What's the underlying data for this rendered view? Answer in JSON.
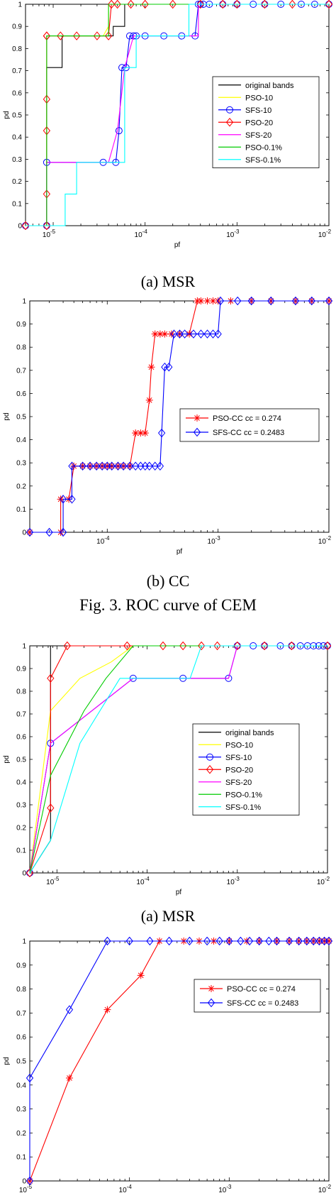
{
  "captions": {
    "chart1": "(a) MSR",
    "chart2": "(b) CC",
    "figure": "Fig. 3. ROC curve of CEM",
    "chart3": "(a) MSR"
  },
  "chart_data": [
    {
      "type": "line",
      "xlabel": "pf",
      "ylabel": "pd",
      "xscale": "log",
      "xlim": [
        5e-06,
        0.01
      ],
      "ylim": [
        0,
        1
      ],
      "xticks": [
        "10-5",
        "10-4",
        "10-3",
        "10-2"
      ],
      "yticks": [
        "0",
        "0.1",
        "0.2",
        "0.3",
        "0.4",
        "0.5",
        "0.6",
        "0.7",
        "0.8",
        "0.9",
        "1"
      ],
      "legend_position": "right-middle",
      "series": [
        {
          "name": "original bands",
          "color": "#000000",
          "marker": "none",
          "x": [
            5e-06,
            8.5e-06,
            8.5e-06,
            1.25e-05,
            1.25e-05,
            4.5e-05,
            4.5e-05,
            6e-05,
            6e-05,
            0.01
          ],
          "y": [
            0,
            0,
            0.714,
            0.714,
            0.857,
            0.857,
            0.9,
            0.9,
            1,
            1
          ]
        },
        {
          "name": "PSO-10",
          "color": "#ffff00",
          "marker": "none",
          "x": [
            5e-06,
            8.5e-06,
            8.5e-06,
            3e-05,
            3.5e-05,
            4e-05,
            4e-05,
            0.01
          ],
          "y": [
            0,
            0,
            0.857,
            0.857,
            0.857,
            0.9,
            1,
            1
          ]
        },
        {
          "name": "SFS-10",
          "color": "#0000ff",
          "marker": "circle",
          "x": [
            5e-06,
            8.5e-06,
            8.5e-06,
            3.5e-05,
            4.8e-05,
            5.2e-05,
            5.6e-05,
            6.2e-05,
            6.8e-05,
            7.5e-05,
            8e-05,
            0.0001,
            0.00016,
            0.00025,
            0.00035,
            0.00038,
            0.0004,
            0.00043,
            0.0005,
            0.0007,
            0.001,
            0.0015,
            0.002,
            0.003,
            0.005,
            0.007,
            0.01
          ],
          "y": [
            0,
            0,
            0.286,
            0.286,
            0.286,
            0.429,
            0.714,
            0.714,
            0.857,
            0.857,
            0.857,
            0.857,
            0.857,
            0.857,
            0.857,
            1,
            1,
            1,
            1,
            1,
            1,
            1,
            1,
            1,
            1,
            1,
            1
          ]
        },
        {
          "name": "PSO-20",
          "color": "#ff0000",
          "marker": "diamond",
          "x": [
            5e-06,
            8.5e-06,
            8.5e-06,
            8.5e-06,
            8.5e-06,
            8.5e-06,
            8.5e-06,
            1.2e-05,
            1.8e-05,
            3e-05,
            4e-05,
            4.3e-05,
            5e-05,
            7e-05,
            0.0001,
            0.0002,
            0.0004,
            0.0007,
            0.001,
            0.002,
            0.004,
            0.01
          ],
          "y": [
            0,
            0,
            0.143,
            0.429,
            0.571,
            0.857,
            0.857,
            0.857,
            0.857,
            0.857,
            0.857,
            1,
            1,
            1,
            1,
            1,
            1,
            1,
            1,
            1,
            1,
            1
          ]
        },
        {
          "name": "SFS-20",
          "color": "#ff00ff",
          "marker": "none",
          "x": [
            5e-06,
            8.5e-06,
            8.5e-06,
            4e-05,
            5e-05,
            6e-05,
            7.5e-05,
            0.0003,
            0.00038,
            0.00038,
            0.01
          ],
          "y": [
            0,
            0,
            0.286,
            0.286,
            0.429,
            0.714,
            0.857,
            0.857,
            0.857,
            1,
            1
          ]
        },
        {
          "name": "PSO-0.1%",
          "color": "#00cc00",
          "marker": "none",
          "x": [
            5e-06,
            8.5e-06,
            8.5e-06,
            4e-05,
            4e-05,
            0.01
          ],
          "y": [
            0,
            0,
            0.857,
            0.857,
            1,
            1
          ]
        },
        {
          "name": "SFS-0.1%",
          "color": "#00ffff",
          "marker": "none",
          "x": [
            5e-06,
            1.35e-05,
            1.35e-05,
            1.8e-05,
            1.8e-05,
            6e-05,
            6e-05,
            8e-05,
            8e-05,
            0.0003,
            0.0003,
            0.01
          ],
          "y": [
            0,
            0,
            0.143,
            0.143,
            0.286,
            0.286,
            0.714,
            0.714,
            0.857,
            0.857,
            1,
            1
          ]
        }
      ]
    },
    {
      "type": "line",
      "xlabel": "pf",
      "ylabel": "pd",
      "xscale": "log",
      "xlim": [
        2e-05,
        0.01
      ],
      "ylim": [
        0,
        1
      ],
      "xticks": [
        "10-4",
        "10-3",
        "10-2"
      ],
      "yticks": [
        "0",
        "0.1",
        "0.2",
        "0.3",
        "0.4",
        "0.5",
        "0.6",
        "0.7",
        "0.8",
        "0.9",
        "1"
      ],
      "legend_position": "right-middle",
      "series": [
        {
          "name": "PSO-CC cc = 0.274",
          "color": "#ff0000",
          "marker": "star",
          "x": [
            2e-05,
            3.8e-05,
            3.8e-05,
            4.5e-05,
            5e-05,
            6e-05,
            7e-05,
            8e-05,
            9e-05,
            0.0001,
            0.00011,
            0.000125,
            0.00014,
            0.00016,
            0.00018,
            0.0002,
            0.00022,
            0.00024,
            0.00025,
            0.00027,
            0.0003,
            0.00033,
            0.00038,
            0.00045,
            0.00055,
            0.00065,
            0.0007,
            0.0008,
            0.0009,
            0.001,
            0.0013,
            0.002,
            0.003,
            0.005,
            0.007,
            0.01
          ],
          "y": [
            0,
            0,
            0.143,
            0.143,
            0.286,
            0.286,
            0.286,
            0.286,
            0.286,
            0.286,
            0.286,
            0.286,
            0.286,
            0.286,
            0.429,
            0.429,
            0.429,
            0.571,
            0.714,
            0.857,
            0.857,
            0.857,
            0.857,
            0.857,
            0.857,
            1,
            1,
            1,
            1,
            1,
            1,
            1,
            1,
            1,
            1,
            1
          ]
        },
        {
          "name": "SFS-CC cc = 0.2483",
          "color": "#0000ff",
          "marker": "diamond",
          "x": [
            2e-05,
            3e-05,
            4e-05,
            4e-05,
            4.8e-05,
            4.8e-05,
            6e-05,
            7e-05,
            8e-05,
            9e-05,
            0.0001,
            0.00011,
            0.000125,
            0.00014,
            0.00016,
            0.00018,
            0.0002,
            0.00022,
            0.00024,
            0.00027,
            0.0003,
            0.00031,
            0.00033,
            0.00036,
            0.0004,
            0.00045,
            0.0005,
            0.0006,
            0.0007,
            0.0008,
            0.0009,
            0.001,
            0.00105,
            0.0015,
            0.002,
            0.003,
            0.005,
            0.007,
            0.01
          ],
          "y": [
            0,
            0,
            0,
            0.143,
            0.143,
            0.286,
            0.286,
            0.286,
            0.286,
            0.286,
            0.286,
            0.286,
            0.286,
            0.286,
            0.286,
            0.286,
            0.286,
            0.286,
            0.286,
            0.286,
            0.286,
            0.429,
            0.714,
            0.714,
            0.857,
            0.857,
            0.857,
            0.857,
            0.857,
            0.857,
            0.857,
            0.857,
            1,
            1,
            1,
            1,
            1,
            1,
            1
          ]
        }
      ]
    },
    {
      "type": "line",
      "xlabel": "pf",
      "ylabel": "pd",
      "xscale": "log",
      "xlim": [
        5e-06,
        0.01
      ],
      "ylim": [
        0,
        1
      ],
      "xticks": [
        "10-5",
        "10-4",
        "10-3",
        "10-2"
      ],
      "yticks": [
        "0",
        "0.1",
        "0.2",
        "0.3",
        "0.4",
        "0.5",
        "0.6",
        "0.7",
        "0.8",
        "0.9",
        "1"
      ],
      "legend_position": "right-middle",
      "series": [
        {
          "name": "original bands",
          "color": "#000000",
          "marker": "none",
          "x": [
            5e-06,
            8.5e-06,
            8.5e-06,
            0.01
          ],
          "y": [
            0,
            0.143,
            1,
            1
          ]
        },
        {
          "name": "PSO-10",
          "color": "#ffff00",
          "marker": "none",
          "x": [
            5e-06,
            8.5e-06,
            1.8e-05,
            4e-05,
            7e-05,
            0.01
          ],
          "y": [
            0,
            0.714,
            0.857,
            0.929,
            1,
            1
          ]
        },
        {
          "name": "SFS-10",
          "color": "#0000ff",
          "marker": "circle",
          "x": [
            5e-06,
            8.5e-06,
            7e-05,
            0.00025,
            0.0008,
            0.001,
            0.0015,
            0.002,
            0.003,
            0.004,
            0.005,
            0.006,
            0.007,
            0.008,
            0.009,
            0.01
          ],
          "y": [
            0,
            0.571,
            0.857,
            0.857,
            0.857,
            1,
            1,
            1,
            1,
            1,
            1,
            1,
            1,
            1,
            1,
            1
          ]
        },
        {
          "name": "PSO-20",
          "color": "#ff0000",
          "marker": "diamond",
          "x": [
            5e-06,
            8.5e-06,
            8.5e-06,
            1.3e-05,
            6e-05,
            0.00015,
            0.00025,
            0.0004,
            0.0006,
            0.001,
            0.002,
            0.004,
            0.01
          ],
          "y": [
            0,
            0.286,
            0.857,
            1,
            1,
            1,
            1,
            1,
            1,
            1,
            1,
            1,
            1
          ]
        },
        {
          "name": "SFS-20",
          "color": "#ff00ff",
          "marker": "none",
          "x": [
            5e-06,
            8.5e-06,
            7e-05,
            0.0008,
            0.001,
            0.01
          ],
          "y": [
            0,
            0.571,
            0.857,
            0.857,
            1,
            1
          ]
        },
        {
          "name": "PSO-0.1%",
          "color": "#00cc00",
          "marker": "none",
          "x": [
            5e-06,
            8.5e-06,
            2e-05,
            3.5e-05,
            7e-05,
            0.01
          ],
          "y": [
            0,
            0.429,
            0.714,
            0.857,
            1,
            1
          ]
        },
        {
          "name": "SFS-0.1%",
          "color": "#00ffff",
          "marker": "none",
          "x": [
            5e-06,
            8.5e-06,
            1.8e-05,
            5e-05,
            0.0003,
            0.0004,
            0.01
          ],
          "y": [
            0,
            0.143,
            0.571,
            0.857,
            0.857,
            1,
            1
          ]
        }
      ]
    },
    {
      "type": "line",
      "xlabel": "pf",
      "ylabel": "pd",
      "xscale": "log",
      "xlim": [
        1e-05,
        0.01
      ],
      "ylim": [
        0,
        1
      ],
      "xticks": [
        "10-5",
        "10-4",
        "10-3",
        "10-2"
      ],
      "yticks": [
        "0",
        "0.1",
        "0.2",
        "0.3",
        "0.4",
        "0.5",
        "0.6",
        "0.7",
        "0.8",
        "0.9",
        "1"
      ],
      "legend_position": "right-top",
      "series": [
        {
          "name": "PSO-CC cc = 0.274",
          "color": "#ff0000",
          "marker": "star",
          "x": [
            1e-05,
            2.5e-05,
            6e-05,
            0.00013,
            0.0002,
            0.00035,
            0.0005,
            0.0007,
            0.001,
            0.0015,
            0.002,
            0.003,
            0.004,
            0.005,
            0.006,
            0.007,
            0.008,
            0.009,
            0.01
          ],
          "y": [
            0,
            0.429,
            0.714,
            0.857,
            1,
            1,
            1,
            1,
            1,
            1,
            1,
            1,
            1,
            1,
            1,
            1,
            1,
            1,
            1
          ]
        },
        {
          "name": "SFS-CC cc = 0.2483",
          "color": "#0000ff",
          "marker": "diamond",
          "x": [
            1e-05,
            1e-05,
            2.5e-05,
            6e-05,
            0.0001,
            0.00016,
            0.00025,
            0.0004,
            0.0006,
            0.0008,
            0.001,
            0.0013,
            0.0016,
            0.002,
            0.0025,
            0.003,
            0.004,
            0.005,
            0.006,
            0.007,
            0.008,
            0.009,
            0.01
          ],
          "y": [
            0,
            0.429,
            0.714,
            1,
            1,
            1,
            1,
            1,
            1,
            1,
            1,
            1,
            1,
            1,
            1,
            1,
            1,
            1,
            1,
            1,
            1,
            1,
            1
          ]
        }
      ]
    }
  ]
}
